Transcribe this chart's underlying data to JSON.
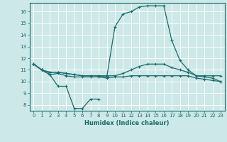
{
  "xlabel": "Humidex (Indice chaleur)",
  "background_color": "#cce8e8",
  "line_color": "#1a6b6b",
  "xlim": [
    -0.5,
    23.5
  ],
  "ylim": [
    7.5,
    16.75
  ],
  "yticks": [
    8,
    9,
    10,
    11,
    12,
    13,
    14,
    15,
    16
  ],
  "xticks": [
    0,
    1,
    2,
    3,
    4,
    5,
    6,
    7,
    8,
    9,
    10,
    11,
    12,
    13,
    14,
    15,
    16,
    17,
    18,
    19,
    20,
    21,
    22,
    23
  ],
  "series": [
    {
      "x": [
        0,
        1,
        2,
        3,
        4,
        5,
        6,
        7,
        8
      ],
      "y": [
        11.5,
        11.0,
        10.6,
        9.6,
        9.6,
        7.7,
        7.7,
        8.5,
        8.5
      ]
    },
    {
      "x": [
        0,
        1,
        2,
        3,
        4,
        5,
        6,
        7,
        8,
        9,
        10,
        11,
        12,
        13,
        14,
        15,
        16,
        17,
        18,
        19,
        20,
        21,
        22,
        23
      ],
      "y": [
        11.5,
        11.0,
        10.6,
        10.7,
        10.5,
        10.4,
        10.4,
        10.4,
        10.4,
        10.3,
        10.4,
        10.4,
        10.5,
        10.5,
        10.5,
        10.5,
        10.5,
        10.5,
        10.5,
        10.5,
        10.3,
        10.2,
        10.1,
        10.0
      ]
    },
    {
      "x": [
        0,
        1,
        2,
        3,
        4,
        5,
        6,
        7,
        8,
        9,
        10,
        11,
        12,
        13,
        14,
        15,
        16,
        17,
        18,
        19,
        20,
        21,
        22,
        23
      ],
      "y": [
        11.5,
        11.0,
        10.8,
        10.8,
        10.7,
        10.6,
        10.5,
        10.5,
        10.5,
        10.5,
        10.5,
        10.7,
        11.0,
        11.3,
        11.5,
        11.5,
        11.5,
        11.2,
        11.0,
        10.8,
        10.5,
        10.5,
        10.5,
        10.5
      ]
    },
    {
      "x": [
        0,
        1,
        2,
        3,
        4,
        5,
        6,
        7,
        8,
        9,
        10,
        11,
        12,
        13,
        14,
        15,
        16,
        17,
        18,
        19,
        20,
        21,
        22,
        23
      ],
      "y": [
        11.5,
        11.0,
        10.8,
        10.8,
        10.7,
        10.6,
        10.5,
        10.5,
        10.5,
        10.4,
        14.7,
        15.8,
        16.0,
        16.4,
        16.5,
        16.5,
        16.5,
        13.5,
        11.8,
        11.0,
        10.5,
        10.4,
        10.3,
        10.0
      ]
    }
  ]
}
